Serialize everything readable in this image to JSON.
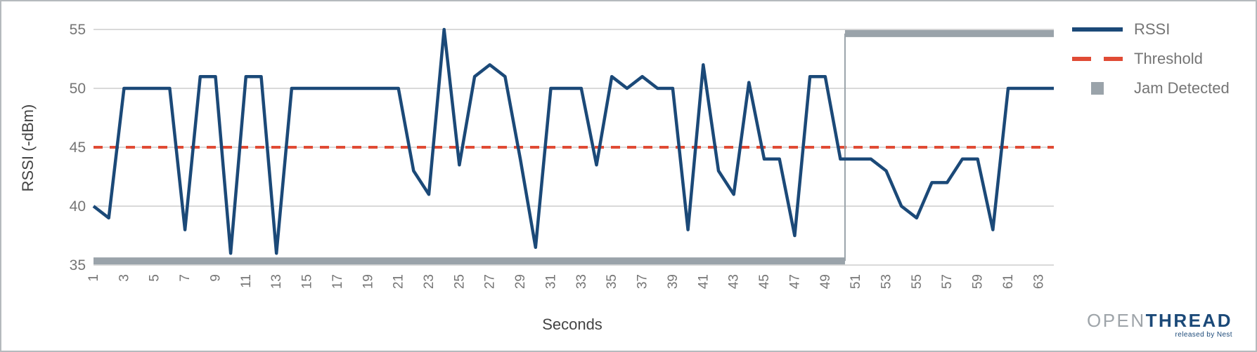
{
  "chart_data": {
    "type": "line",
    "title": "",
    "xlabel": "Seconds",
    "ylabel": "RSSI (-dBm)",
    "ylim": [
      35,
      55
    ],
    "yticks": [
      55,
      50,
      45,
      40,
      35
    ],
    "xticks": [
      1,
      3,
      5,
      7,
      9,
      11,
      13,
      15,
      17,
      19,
      21,
      23,
      25,
      27,
      29,
      31,
      33,
      35,
      37,
      39,
      41,
      43,
      45,
      47,
      49,
      51,
      53,
      55,
      57,
      59,
      61,
      63
    ],
    "x_range": [
      1,
      64
    ],
    "grid": "horizontal",
    "legend_position": "right",
    "series": [
      {
        "name": "RSSI",
        "type": "line",
        "color": "#1b4978",
        "x_start": 1,
        "values": [
          40,
          39,
          50,
          50,
          50,
          50,
          38,
          51,
          51,
          36,
          51,
          51,
          36,
          50,
          50,
          50,
          50,
          50,
          50,
          50,
          50,
          43,
          41,
          55,
          43.5,
          51,
          52,
          51,
          44,
          36.5,
          50,
          50,
          50,
          43.5,
          51,
          50,
          51,
          50,
          50,
          38,
          52,
          43,
          41,
          50.5,
          44,
          44,
          37.5,
          51,
          51,
          44,
          44,
          44,
          43,
          40,
          39,
          42,
          42,
          44,
          44,
          38,
          50,
          50,
          50,
          50
        ]
      },
      {
        "name": "Threshold",
        "type": "dashed-line",
        "color": "#e04b35",
        "value": 45
      },
      {
        "name": "Jam Detected",
        "type": "step-band",
        "color": "#9aa3aa",
        "segments": [
          {
            "from": 1,
            "to": 50.3,
            "level": 35.35
          },
          {
            "from": 50.3,
            "to": 64,
            "level": 54.65
          }
        ]
      }
    ]
  },
  "logo": {
    "word_gray": "OPEN",
    "word_navy": "THREAD",
    "tagline": "released by Nest"
  },
  "colors": {
    "rssi": "#1b4978",
    "threshold": "#e04b35",
    "jam": "#9aa3aa",
    "grid": "#d9d9d9",
    "tick_label": "#757575",
    "axis_title": "#434343",
    "legend_text": "#757575",
    "logo_gray": "#9ea4a9",
    "logo_navy": "#1b4978",
    "frame_border": "#b5babd"
  }
}
